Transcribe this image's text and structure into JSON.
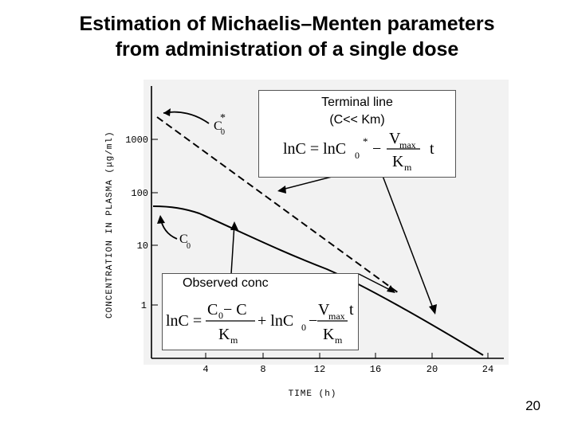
{
  "title_line1": "Estimation of Michaelis–Menten parameters",
  "title_line2": "from administration of a single dose",
  "y_axis_label": "CONCENTRATION  IN  PLASMA (μg/ml)",
  "x_axis_label": "TIME (h)",
  "y_ticks": [
    "1000",
    "100",
    "10",
    "1"
  ],
  "x_ticks": [
    "4",
    "8",
    "12",
    "16",
    "20",
    "24"
  ],
  "curve_labels": {
    "c0_star": "C",
    "c0": "C"
  },
  "terminal_box": {
    "line1": "Terminal line",
    "line2": "(C<< Km)",
    "eq_lhs": "lnC = lnC",
    "eq_sub": "0",
    "eq_sup": "*",
    "minus": "−",
    "num": "V",
    "num_sub": "max",
    "den": "K",
    "den_sub": "m",
    "t": "t"
  },
  "observed_box": {
    "label": "Observed conc",
    "eq_lhs": "lnC =",
    "f1_num": "C",
    "f1_num_sub": "0",
    "f1_num_rest": " − C",
    "f1_den": "K",
    "f1_den_sub": "m",
    "plus": "+ lnC",
    "plus_sub": "0",
    "minus": "−",
    "f2_num": "V",
    "f2_num_sub": "max",
    "f2_den": "K",
    "f2_den_sub": "m",
    "t": "t"
  },
  "slide_number": "20",
  "chart_data": {
    "type": "line",
    "xlabel": "TIME (h)",
    "ylabel": "CONCENTRATION IN PLASMA (μg/ml)",
    "log_y": true,
    "xlim": [
      0,
      24
    ],
    "ylim": [
      0.3,
      3000
    ],
    "series": [
      {
        "name": "observed",
        "style": "solid",
        "x": [
          0,
          2,
          4,
          6,
          8,
          10,
          12,
          14,
          16,
          18,
          20,
          22,
          24
        ],
        "y": [
          80,
          75,
          60,
          45,
          30,
          20,
          12,
          7,
          3.5,
          1.7,
          0.9,
          0.5,
          0.3
        ]
      },
      {
        "name": "terminal",
        "style": "dashed",
        "x": [
          0,
          17.5
        ],
        "y": [
          1500,
          1.7
        ]
      }
    ]
  }
}
